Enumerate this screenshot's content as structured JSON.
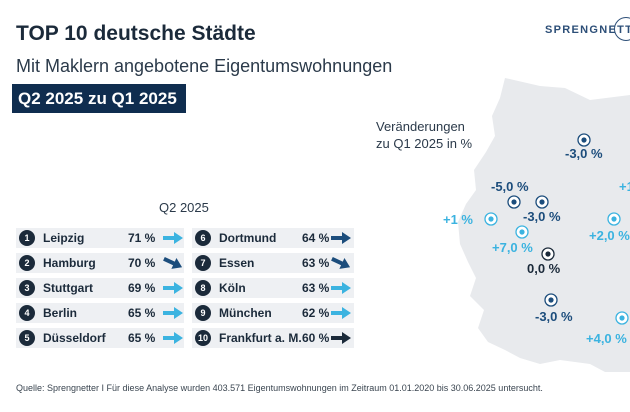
{
  "header": {
    "title": "TOP 10 deutsche Städte",
    "subtitle": "Mit Maklern angebotene Eigentumswohnungen",
    "period": "Q2 2025 zu Q1 2025",
    "logo": "SPRENGNETTER"
  },
  "legend": {
    "line1": "Veränderungen",
    "line2": "zu Q1 2025 in %"
  },
  "ranking": {
    "quarter_label": "Q2 2025",
    "items": [
      {
        "rank": "1",
        "city": "Leipzig",
        "share": "71 %",
        "trend": "light-right"
      },
      {
        "rank": "2",
        "city": "Hamburg",
        "share": "70 %",
        "trend": "navy-down"
      },
      {
        "rank": "3",
        "city": "Stuttgart",
        "share": "69 %",
        "trend": "light-right"
      },
      {
        "rank": "4",
        "city": "Berlin",
        "share": "65 %",
        "trend": "light-right"
      },
      {
        "rank": "5",
        "city": "Düsseldorf",
        "share": "65 %",
        "trend": "light-right"
      },
      {
        "rank": "6",
        "city": "Dortmund",
        "share": "64 %",
        "trend": "navy-right"
      },
      {
        "rank": "7",
        "city": "Essen",
        "share": "63 %",
        "trend": "navy-down"
      },
      {
        "rank": "8",
        "city": "Köln",
        "share": "63 %",
        "trend": "light-right"
      },
      {
        "rank": "9",
        "city": "München",
        "share": "62 %",
        "trend": "light-right"
      },
      {
        "rank": "10",
        "city": "Frankfurt a. M.",
        "share": "60 %",
        "trend": "dark-right"
      }
    ]
  },
  "map": {
    "colors": {
      "land": "#e8eaed",
      "dark": "#1b2a3a",
      "navy": "#1c4d7c",
      "light": "#3bb3e0"
    },
    "labels": [
      {
        "text": "-3,0 %",
        "tone": "navy"
      },
      {
        "text": "-5,0 %",
        "tone": "navy"
      },
      {
        "text": "-3,0 %",
        "tone": "navy"
      },
      {
        "text": "+1 %",
        "tone": "light"
      },
      {
        "text": "+7,0 %",
        "tone": "light"
      },
      {
        "text": "0,0 %",
        "tone": "dark"
      },
      {
        "text": "+2,0 %",
        "tone": "light"
      },
      {
        "text": "-3,0 %",
        "tone": "navy"
      },
      {
        "text": "+4,0 %",
        "tone": "light"
      },
      {
        "text": "+1",
        "tone": "light"
      }
    ]
  },
  "footer": {
    "source": "Quelle: Sprengnetter I Für diese Analyse wurden 403.571 Eigentumswohnungen im Zeitraum 01.01.2020 bis 30.06.2025 untersucht."
  }
}
